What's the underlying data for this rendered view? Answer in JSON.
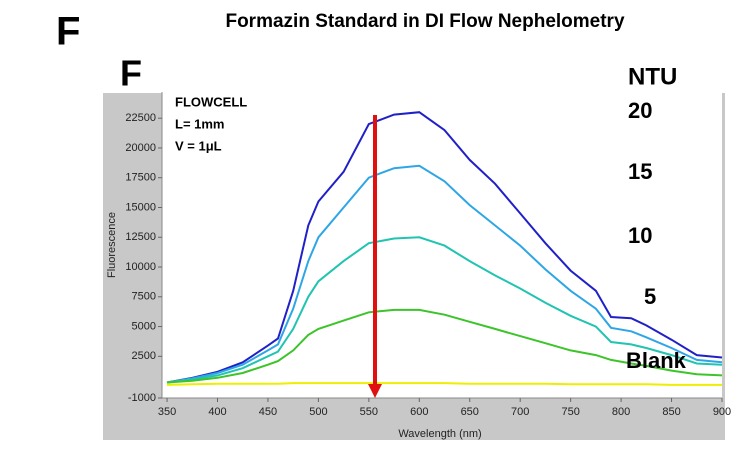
{
  "heading": "F",
  "chart_data": {
    "type": "line",
    "panel_label": "F",
    "title": "Formazin Standard in DI Flow Nephelometry",
    "x_label": "Wavelength (nm)",
    "y_label": "Fluorescence",
    "annotations": [
      "FLOWCELL",
      "L= 1mm",
      "V = 1μL"
    ],
    "legend_title": "NTU",
    "legend_position": "right",
    "xlim": [
      345,
      900
    ],
    "xticks": [
      350,
      400,
      450,
      500,
      550,
      600,
      650,
      700,
      750,
      800,
      850,
      900
    ],
    "ylim": [
      -1000,
      24700
    ],
    "yticks": [
      -1000,
      2500,
      5000,
      7500,
      10000,
      12500,
      15000,
      17500,
      20000,
      22500
    ],
    "x": [
      350,
      375,
      400,
      425,
      450,
      460,
      475,
      490,
      500,
      525,
      550,
      575,
      600,
      625,
      650,
      675,
      700,
      725,
      750,
      775,
      790,
      810,
      825,
      850,
      875,
      900
    ],
    "series": [
      {
        "name": "20",
        "color": "#2020c8",
        "values": [
          300,
          700,
          1200,
          2000,
          3400,
          4000,
          8000,
          13500,
          15500,
          18000,
          22000,
          22800,
          23000,
          21500,
          19000,
          17000,
          14500,
          12000,
          9700,
          8000,
          5800,
          5700,
          5100,
          3900,
          2600,
          2400
        ]
      },
      {
        "name": "15",
        "color": "#2ea6e6",
        "values": [
          300,
          650,
          1100,
          1800,
          3000,
          3500,
          6500,
          10500,
          12500,
          15000,
          17500,
          18300,
          18500,
          17200,
          15200,
          13500,
          11800,
          9800,
          8000,
          6500,
          4900,
          4600,
          4100,
          3200,
          2200,
          2000
        ]
      },
      {
        "name": "10",
        "color": "#20c4b0",
        "values": [
          300,
          550,
          900,
          1500,
          2500,
          2900,
          4800,
          7500,
          8800,
          10500,
          12000,
          12400,
          12500,
          11800,
          10500,
          9300,
          8200,
          7000,
          5900,
          5000,
          3700,
          3500,
          3200,
          2600,
          1900,
          1800
        ]
      },
      {
        "name": "5",
        "color": "#3cc42a",
        "values": [
          300,
          450,
          700,
          1100,
          1800,
          2100,
          3000,
          4300,
          4800,
          5500,
          6200,
          6400,
          6400,
          6000,
          5400,
          4800,
          4200,
          3600,
          3000,
          2600,
          2200,
          1900,
          1700,
          1300,
          1000,
          900
        ]
      },
      {
        "name": "Blank",
        "color": "#eeee00",
        "values": [
          100,
          150,
          200,
          200,
          200,
          200,
          250,
          250,
          250,
          250,
          250,
          250,
          250,
          250,
          200,
          200,
          200,
          200,
          150,
          150,
          150,
          150,
          150,
          100,
          100,
          100
        ]
      }
    ]
  }
}
